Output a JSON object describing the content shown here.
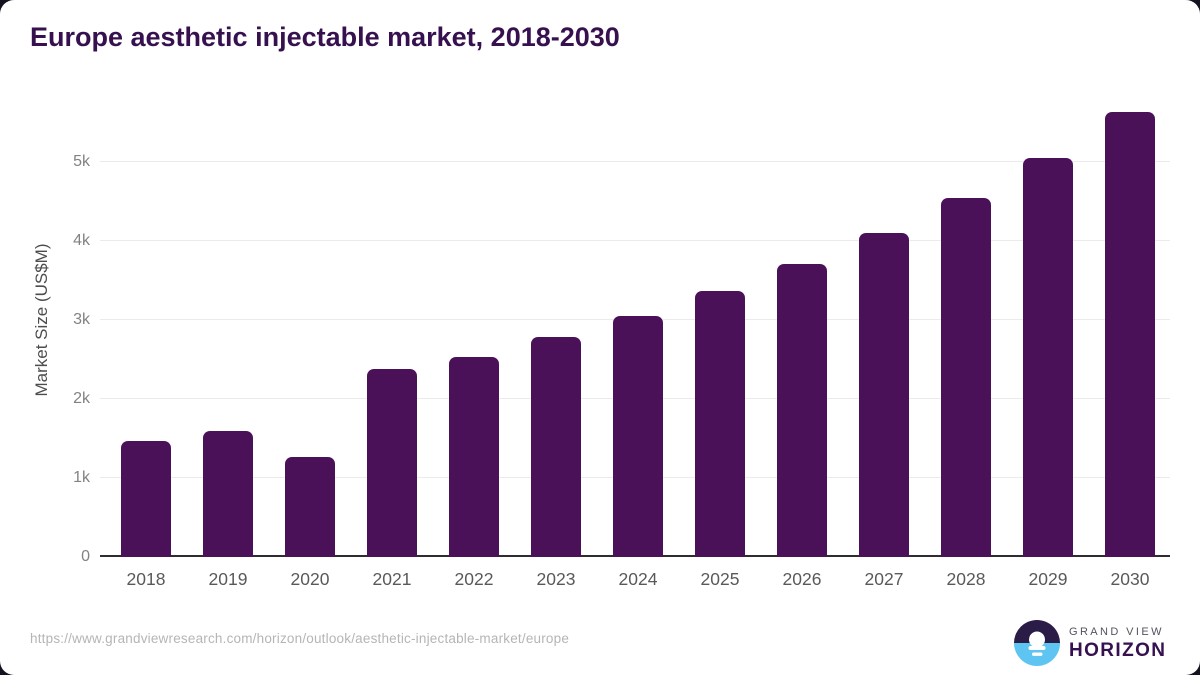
{
  "title": "Europe aesthetic injectable market, 2018-2030",
  "chart_data": {
    "type": "bar",
    "title": "Europe aesthetic injectable market, 2018-2030",
    "categories": [
      "2018",
      "2019",
      "2020",
      "2021",
      "2022",
      "2023",
      "2024",
      "2025",
      "2026",
      "2027",
      "2028",
      "2029",
      "2030"
    ],
    "values": [
      1470,
      1595,
      1265,
      2380,
      2530,
      2785,
      3050,
      3365,
      3710,
      4100,
      4545,
      5050,
      5630
    ],
    "xlabel": "",
    "ylabel": "Market Size (US$M)",
    "ylim": [
      0,
      5820
    ],
    "yticks": [
      {
        "value": 0,
        "label": "0"
      },
      {
        "value": 1000,
        "label": "1k"
      },
      {
        "value": 2000,
        "label": "2k"
      },
      {
        "value": 3000,
        "label": "3k"
      },
      {
        "value": 4000,
        "label": "4k"
      },
      {
        "value": 5000,
        "label": "5k"
      }
    ],
    "grid": "horizontal",
    "legend": "none",
    "bar_color": "#4a1159"
  },
  "colors": {
    "title": "#37104f",
    "bar": "#4a1159",
    "gridline": "#ebebeb",
    "baseline": "#2f2c33",
    "tick_label": "#828282",
    "x_label": "#595959",
    "axis_title": "#4d4d4d",
    "footer_url": "#b5b5b5",
    "logo_dark": "#2b1b47",
    "logo_blue": "#5ec5f2"
  },
  "footer": {
    "source_url": "https://www.grandviewresearch.com/horizon/outlook/aesthetic-injectable-market/europe",
    "logo": {
      "line1": "GRAND VIEW",
      "line2": "HORIZON"
    }
  }
}
